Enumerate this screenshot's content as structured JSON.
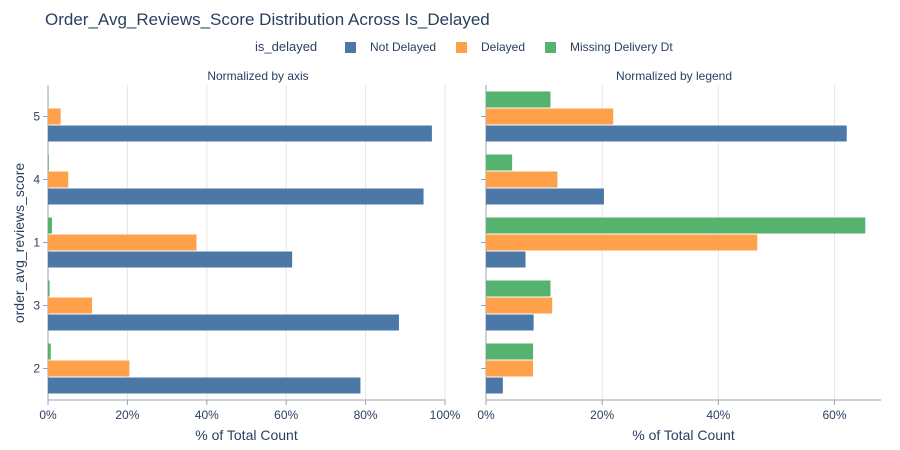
{
  "chart_data": {
    "type": "bar",
    "orientation": "horizontal",
    "title": "Order_Avg_Reviews_Score Distribution Across Is_Delayed",
    "legend": {
      "title": "is_delayed",
      "placement": "top",
      "entries": [
        "Not Delayed",
        "Delayed",
        "Missing Delivery Dt"
      ]
    },
    "colors": {
      "Not Delayed": "#4c78a8",
      "Delayed": "#ffa04a",
      "Missing Delivery Dt": "#55b26f",
      "text": "#2a3f5f",
      "grid": "#e6e6e6",
      "axis": "#9ca3af"
    },
    "ylabel": "order_avg_reviews_score",
    "categories": [
      "5",
      "4",
      "1",
      "3",
      "2"
    ],
    "panels": [
      {
        "subtitle": "Normalized by axis",
        "xlabel": "% of Total Count",
        "xlim": [
          0,
          100
        ],
        "xticks": [
          0,
          20,
          40,
          60,
          80,
          100
        ],
        "xtick_labels": [
          "0%",
          "20%",
          "40%",
          "60%",
          "80%",
          "100%"
        ],
        "series": [
          {
            "name": "Not Delayed",
            "values": [
              96.7,
              94.6,
              61.5,
              88.4,
              78.7
            ]
          },
          {
            "name": "Delayed",
            "values": [
              3.2,
              5.1,
              37.4,
              11.1,
              20.5
            ]
          },
          {
            "name": "Missing Delivery Dt",
            "values": [
              0.1,
              0.2,
              1.0,
              0.4,
              0.7
            ]
          }
        ]
      },
      {
        "subtitle": "Normalized by legend",
        "xlabel": "% of Total Count",
        "xlim": [
          0,
          68
        ],
        "xticks": [
          0,
          20,
          40,
          60
        ],
        "xtick_labels": [
          "0%",
          "20%",
          "40%",
          "60%"
        ],
        "series": [
          {
            "name": "Not Delayed",
            "values": [
              62.1,
              20.3,
              6.8,
              8.2,
              2.9
            ]
          },
          {
            "name": "Delayed",
            "values": [
              21.9,
              12.3,
              46.7,
              11.4,
              8.1
            ]
          },
          {
            "name": "Missing Delivery Dt",
            "values": [
              11.1,
              4.5,
              65.3,
              11.1,
              8.1
            ]
          }
        ]
      }
    ]
  }
}
